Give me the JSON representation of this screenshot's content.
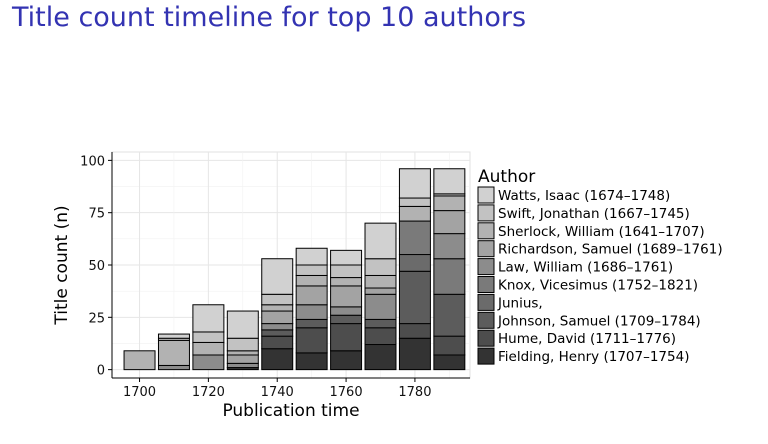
{
  "slide": {
    "title": "Title count timeline for top 10 authors"
  },
  "chart_data": {
    "type": "bar",
    "stacked": true,
    "title": "",
    "xlabel": "Publication time",
    "ylabel": "Title count (n)",
    "x": [
      1700,
      1710,
      1720,
      1730,
      1740,
      1750,
      1760,
      1770,
      1780,
      1790
    ],
    "xticks": [
      "1700",
      "1720",
      "1740",
      "1760",
      "1780"
    ],
    "xlim": [
      1692,
      1796
    ],
    "ylim": [
      -4,
      104
    ],
    "yticks": [
      "0",
      "25",
      "50",
      "75",
      "100"
    ],
    "grid": true,
    "legend": {
      "title": "Author",
      "position": "right"
    },
    "series": [
      {
        "name": "Fielding, Henry (1707–1754)",
        "color": "#333333",
        "values": [
          0,
          0,
          0,
          1,
          10,
          8,
          9,
          12,
          15,
          7
        ]
      },
      {
        "name": "Hume, David (1711–1776)",
        "color": "#4d4d4d",
        "values": [
          0,
          0,
          0,
          0,
          6,
          12,
          13,
          8,
          7,
          9
        ]
      },
      {
        "name": "Johnson, Samuel (1709–1784)",
        "color": "#5c5c5c",
        "values": [
          0,
          0,
          0,
          0,
          3,
          4,
          4,
          4,
          25,
          20
        ]
      },
      {
        "name": "Junius,",
        "color": "#6b6b6b",
        "values": [
          0,
          0,
          0,
          0,
          0,
          0,
          0,
          0,
          8,
          0
        ]
      },
      {
        "name": "Knox, Vicesimus (1752–1821)",
        "color": "#7a7a7a",
        "values": [
          0,
          0,
          0,
          0,
          0,
          0,
          0,
          0,
          16,
          17
        ]
      },
      {
        "name": "Law, William (1686–1761)",
        "color": "#8c8c8c",
        "values": [
          0,
          2,
          7,
          2,
          3,
          7,
          4,
          12,
          0,
          12
        ]
      },
      {
        "name": "Richardson, Samuel (1689–1761)",
        "color": "#a3a3a3",
        "values": [
          0,
          0,
          0,
          4,
          6,
          9,
          10,
          3,
          0,
          11
        ]
      },
      {
        "name": "Sherlock, William (1641–1707)",
        "color": "#b2b2b2",
        "values": [
          9,
          12,
          6,
          2,
          3,
          5,
          4,
          6,
          7,
          7
        ]
      },
      {
        "name": "Swift, Jonathan (1667–1745)",
        "color": "#c2c2c2",
        "values": [
          0,
          1,
          5,
          6,
          5,
          5,
          6,
          8,
          4,
          1
        ]
      },
      {
        "name": "Watts, Isaac (1674–1748)",
        "color": "#d1d1d1",
        "values": [
          0,
          2,
          13,
          13,
          17,
          8,
          7,
          17,
          14,
          12
        ]
      }
    ]
  }
}
